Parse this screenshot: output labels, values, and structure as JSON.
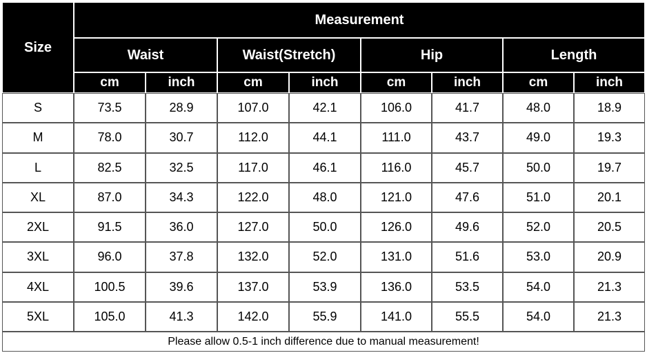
{
  "table": {
    "size_label": "Size",
    "measurement_label": "Measurement",
    "groups": [
      "Waist",
      "Waist(Stretch)",
      "Hip",
      "Length"
    ],
    "units": [
      "cm",
      "inch",
      "cm",
      "inch",
      "cm",
      "inch",
      "cm",
      "inch"
    ],
    "rows": [
      [
        "S",
        "73.5",
        "28.9",
        "107.0",
        "42.1",
        "106.0",
        "41.7",
        "48.0",
        "18.9"
      ],
      [
        "M",
        "78.0",
        "30.7",
        "112.0",
        "44.1",
        "111.0",
        "43.7",
        "49.0",
        "19.3"
      ],
      [
        "L",
        "82.5",
        "32.5",
        "117.0",
        "46.1",
        "116.0",
        "45.7",
        "50.0",
        "19.7"
      ],
      [
        "XL",
        "87.0",
        "34.3",
        "122.0",
        "48.0",
        "121.0",
        "47.6",
        "51.0",
        "20.1"
      ],
      [
        "2XL",
        "91.5",
        "36.0",
        "127.0",
        "50.0",
        "126.0",
        "49.6",
        "52.0",
        "20.5"
      ],
      [
        "3XL",
        "96.0",
        "37.8",
        "132.0",
        "52.0",
        "131.0",
        "51.6",
        "53.0",
        "20.9"
      ],
      [
        "4XL",
        "100.5",
        "39.6",
        "137.0",
        "53.9",
        "136.0",
        "53.5",
        "54.0",
        "21.3"
      ],
      [
        "5XL",
        "105.0",
        "41.3",
        "142.0",
        "55.9",
        "141.0",
        "55.5",
        "54.0",
        "21.3"
      ]
    ],
    "note": "Please allow 0.5-1 inch difference due to manual measurement!"
  }
}
